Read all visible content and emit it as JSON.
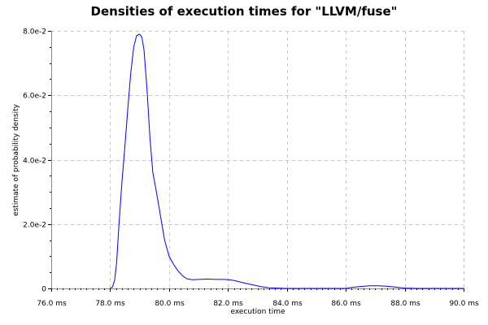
{
  "chart_data": {
    "type": "line",
    "title": "Densities of execution times for \"LLVM/fuse\"",
    "xlabel": "execution time",
    "ylabel": "estimate of probability density",
    "xlim": [
      76.0,
      90.0
    ],
    "ylim": [
      0,
      0.08
    ],
    "x_ticks": [
      76.0,
      78.0,
      80.0,
      82.0,
      84.0,
      86.0,
      88.0,
      90.0
    ],
    "x_tick_labels": [
      "76.0 ms",
      "78.0 ms",
      "80.0 ms",
      "82.0 ms",
      "84.0 ms",
      "86.0 ms",
      "88.0 ms",
      "90.0 ms"
    ],
    "y_ticks": [
      0,
      0.02,
      0.04,
      0.06,
      0.08
    ],
    "y_tick_labels": [
      "0",
      "2.0e-2",
      "4.0e-2",
      "6.0e-2",
      "8.0e-2"
    ],
    "grid": true,
    "series_color": "#0000ff",
    "series": [
      {
        "x": [
          78.0,
          78.08,
          78.15,
          78.22,
          78.3,
          78.4,
          78.5,
          78.6,
          78.7,
          78.8,
          78.9,
          79.0,
          79.08,
          79.15,
          79.25,
          79.35,
          79.45,
          79.55,
          79.7,
          79.85,
          80.0,
          80.15,
          80.3,
          80.45,
          80.6,
          80.8,
          81.0,
          81.3,
          81.6,
          81.9,
          82.2,
          82.5,
          82.8,
          83.1,
          83.4,
          84.0,
          85.0,
          86.0,
          86.2,
          86.5,
          86.8,
          87.1,
          87.4,
          87.7,
          88.0,
          88.5,
          90.0
        ],
        "y": [
          0.0,
          0.0005,
          0.0025,
          0.008,
          0.02,
          0.033,
          0.044,
          0.056,
          0.067,
          0.075,
          0.0785,
          0.079,
          0.078,
          0.074,
          0.062,
          0.047,
          0.036,
          0.031,
          0.023,
          0.015,
          0.01,
          0.0075,
          0.0055,
          0.004,
          0.003,
          0.0027,
          0.0028,
          0.0029,
          0.0028,
          0.0028,
          0.0025,
          0.0018,
          0.0012,
          0.0006,
          0.0002,
          0.0,
          0.0,
          0.0,
          0.0003,
          0.0006,
          0.0008,
          0.0008,
          0.0007,
          0.0004,
          0.0001,
          0.0,
          0.0
        ]
      }
    ]
  }
}
